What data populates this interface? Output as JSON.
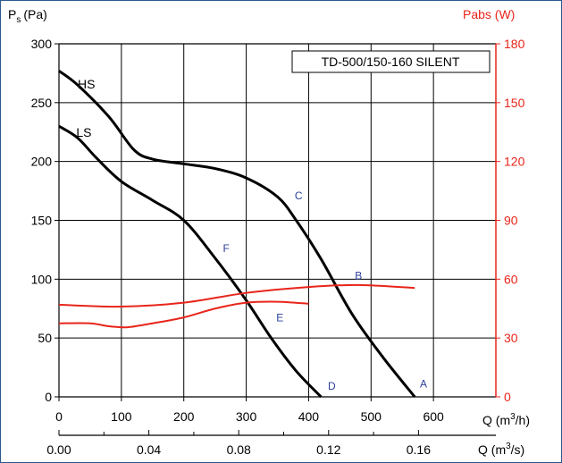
{
  "chart_data": {
    "type": "line",
    "model_label": "TD-500/150-160 SILENT",
    "left_axis": {
      "label": "P",
      "label_sub": "s",
      "label_unit": "(Pa)",
      "range": [
        0,
        300
      ],
      "ticks": [
        0,
        50,
        100,
        150,
        200,
        250,
        300
      ]
    },
    "right_axis": {
      "label": "Pabs (W)",
      "range": [
        0,
        180
      ],
      "ticks": [
        0,
        30,
        60,
        90,
        120,
        150,
        180
      ],
      "color": "#e8251b"
    },
    "x_axis": {
      "label_prefix": "Q (m",
      "label_sup": "3",
      "label_suffix": "/h)",
      "range": [
        0,
        700
      ],
      "ticks": [
        0,
        100,
        200,
        300,
        400,
        500,
        600
      ]
    },
    "x2_axis": {
      "label_prefix": "Q (m",
      "label_sup": "3",
      "label_suffix": "/s)",
      "ticks": [
        "0.00",
        "0.04",
        "0.08",
        "0.12",
        "0.16"
      ],
      "tick_positions_m3h": [
        0,
        144,
        288,
        432,
        576
      ]
    },
    "grid": true,
    "pressure_series": [
      {
        "name": "HS",
        "color": "#000000",
        "x": [
          0,
          30,
          80,
          120,
          150,
          200,
          250,
          300,
          350,
          380,
          420,
          470,
          520,
          570
        ],
        "y": [
          277,
          265,
          238,
          210,
          202,
          198,
          194,
          186,
          170,
          150,
          117,
          70,
          33,
          0
        ]
      },
      {
        "name": "LS",
        "color": "#000000",
        "x": [
          0,
          30,
          60,
          100,
          150,
          200,
          250,
          300,
          340,
          380,
          420
        ],
        "y": [
          230,
          220,
          203,
          183,
          167,
          150,
          118,
          82,
          50,
          22,
          0
        ]
      }
    ],
    "power_series": [
      {
        "color": "#e8251b",
        "x": [
          0,
          100,
          200,
          300,
          400,
          480,
          570
        ],
        "y": [
          47,
          46,
          48,
          53,
          56,
          57,
          55.5
        ]
      },
      {
        "color": "#e8251b",
        "x": [
          0,
          50,
          80,
          110,
          150,
          200,
          250,
          300,
          350,
          400
        ],
        "y": [
          37.5,
          37.5,
          36,
          35.5,
          37.5,
          40.5,
          45,
          48,
          48.5,
          47.5
        ]
      }
    ],
    "point_labels": [
      {
        "text": "A",
        "x": 584,
        "y": 8
      },
      {
        "text": "B",
        "x": 480,
        "y": 100
      },
      {
        "text": "C",
        "x": 384,
        "y": 168
      },
      {
        "text": "D",
        "x": 437,
        "y": 6
      },
      {
        "text": "E",
        "x": 354,
        "y": 64
      },
      {
        "text": "F",
        "x": 268,
        "y": 123
      }
    ],
    "curve_labels": [
      {
        "text": "HS",
        "x": 44,
        "y": 262
      },
      {
        "text": "LS",
        "x": 40,
        "y": 221
      }
    ]
  }
}
